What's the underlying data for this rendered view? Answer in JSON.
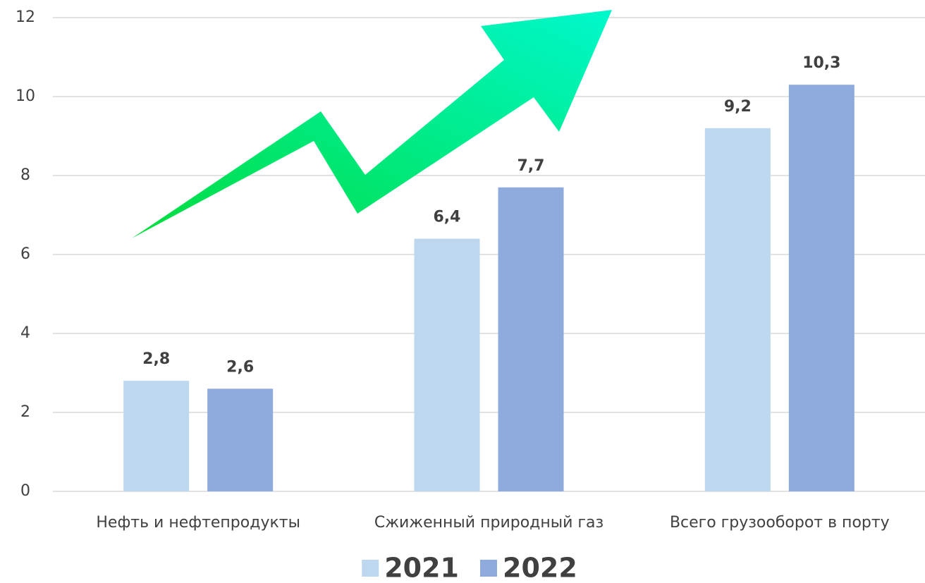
{
  "chart_data": {
    "type": "bar",
    "categories": [
      "Нефть и нефтепродукты",
      "Сжиженный природный газ",
      "Всего грузооборот в порту"
    ],
    "series": [
      {
        "name": "2021",
        "color": "#bdd7ee",
        "values": [
          2.8,
          6.4,
          9.2
        ],
        "value_labels": [
          "2,8",
          "6,4",
          "9,2"
        ]
      },
      {
        "name": "2022",
        "color": "#8faadc",
        "values": [
          2.6,
          7.7,
          10.3
        ],
        "value_labels": [
          "2,6",
          "7,7",
          "10,3"
        ]
      }
    ],
    "ylim": [
      0,
      12
    ],
    "yticks": [
      0,
      2,
      4,
      6,
      8,
      10,
      12
    ],
    "grid": true,
    "legend": "bottom"
  }
}
